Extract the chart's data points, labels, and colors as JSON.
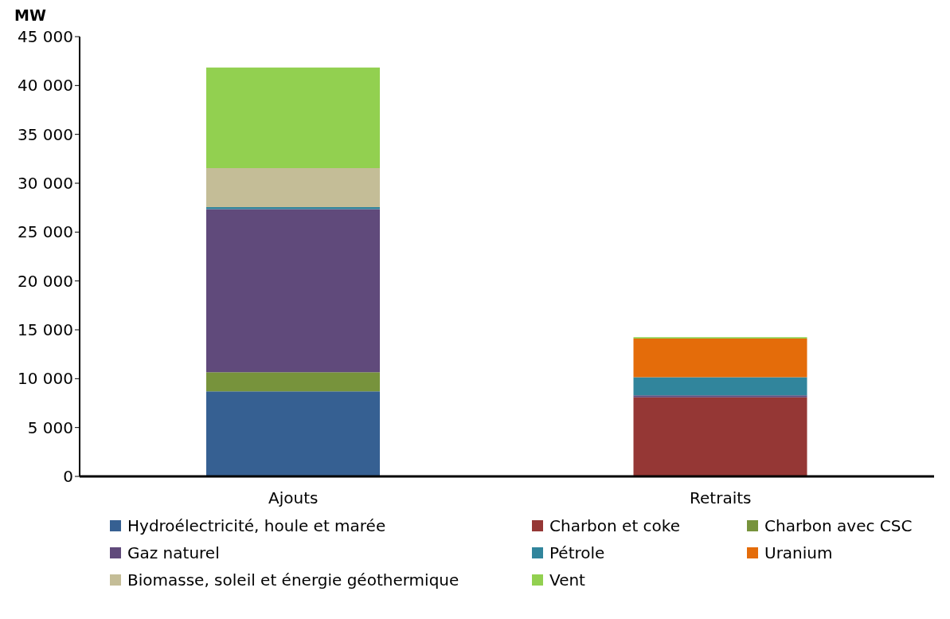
{
  "chart_data": {
    "type": "bar",
    "stacked": true,
    "ylabel": "MW",
    "categories": [
      "Ajouts",
      "Retraits"
    ],
    "series": [
      {
        "name": "Hydroélectricité, houle et marée",
        "color": "#366092",
        "values": [
          8700,
          0
        ]
      },
      {
        "name": "Charbon et coke",
        "color": "#953735",
        "values": [
          0,
          8100
        ]
      },
      {
        "name": "Charbon avec CSC",
        "color": "#77933c",
        "values": [
          1950,
          0
        ]
      },
      {
        "name": "Gaz naturel",
        "color": "#604a7b",
        "values": [
          16700,
          200
        ]
      },
      {
        "name": "Pétrole",
        "color": "#31859c",
        "values": [
          200,
          1850
        ]
      },
      {
        "name": "Uranium",
        "color": "#e46c0a",
        "values": [
          0,
          3950
        ]
      },
      {
        "name": "Biomasse, soleil et énergie géothermique",
        "color": "#c4bd97",
        "values": [
          4000,
          0
        ]
      },
      {
        "name": "Vent",
        "color": "#92d050",
        "values": [
          10300,
          150
        ]
      }
    ],
    "ylim": [
      0,
      45000
    ],
    "yticks": [
      {
        "value": 0,
        "label": "0"
      },
      {
        "value": 5000,
        "label": "5 000"
      },
      {
        "value": 10000,
        "label": "10 000"
      },
      {
        "value": 15000,
        "label": "15 000"
      },
      {
        "value": 20000,
        "label": "20 000"
      },
      {
        "value": 25000,
        "label": "25 000"
      },
      {
        "value": 30000,
        "label": "30 000"
      },
      {
        "value": 35000,
        "label": "35 000"
      },
      {
        "value": 40000,
        "label": "40 000"
      },
      {
        "value": 45000,
        "label": "45 000"
      }
    ],
    "grid": false,
    "legend": "bottom"
  }
}
